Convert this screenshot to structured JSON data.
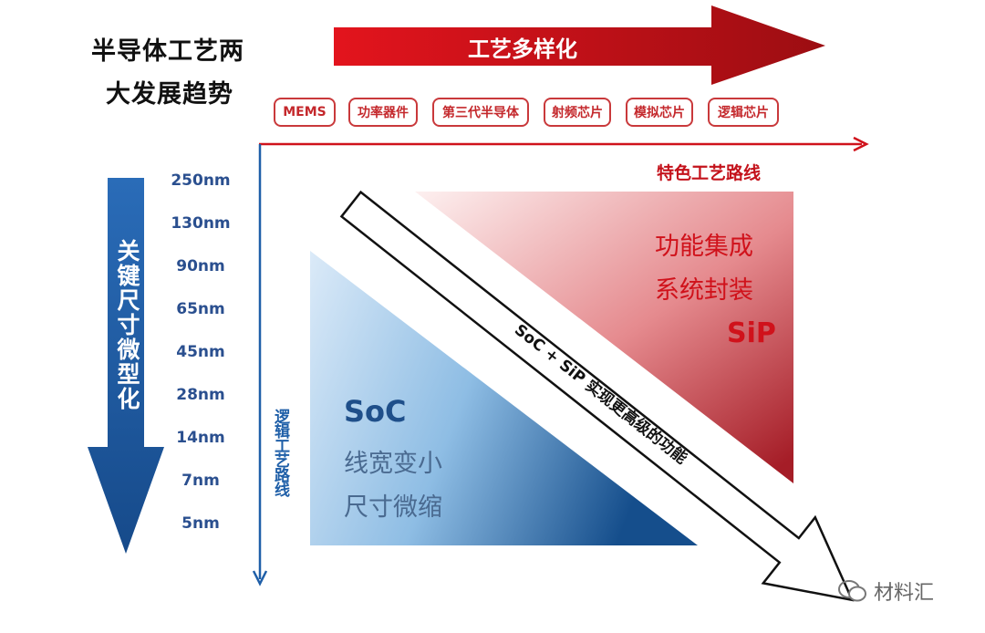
{
  "title": {
    "line1": "半导体工艺两",
    "line2": "大发展趋势"
  },
  "top_arrow": {
    "label": "工艺多样化",
    "color": "#d0121b"
  },
  "process_tags": [
    "MEMS",
    "功率器件",
    "第三代半导体",
    "射频芯片",
    "模拟芯片",
    "逻辑芯片"
  ],
  "axes": {
    "horizontal_label": "特色工艺路线",
    "vertical_label": "逻辑工艺路线",
    "horizontal_color": "#d0121b",
    "vertical_color": "#1f5fa8"
  },
  "left_arrow": {
    "label": "关键尺寸微型化",
    "color": "#1f5fa8"
  },
  "nodes": [
    "250nm",
    "130nm",
    "90nm",
    "65nm",
    "45nm",
    "28nm",
    "14nm",
    "7nm",
    "5nm"
  ],
  "sip": {
    "line1": "功能集成",
    "line2": "系统封装",
    "name": "SiP"
  },
  "soc": {
    "name": "SoC",
    "line1": "线宽变小",
    "line2": "尺寸微缩"
  },
  "diagonal_arrow": {
    "label": "SoC + SiP 实现更高级的功能"
  },
  "watermark": {
    "text": "材料汇",
    "icon": "wechat-icon"
  }
}
